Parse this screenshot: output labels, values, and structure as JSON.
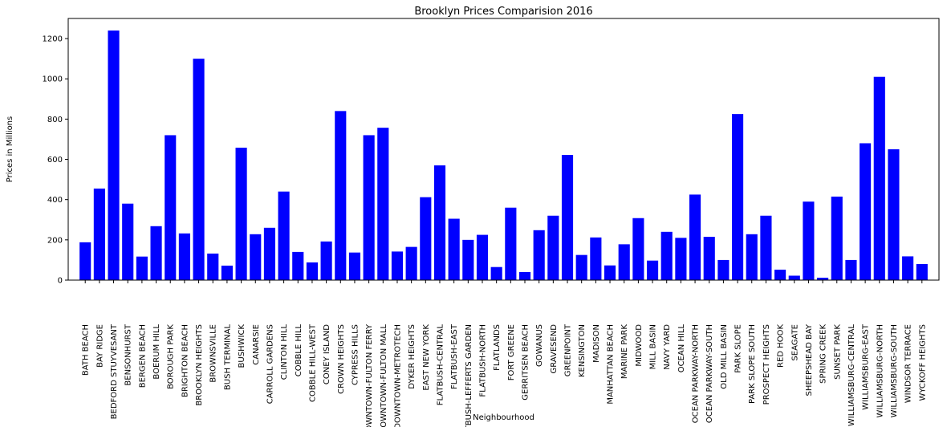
{
  "chart_data": {
    "type": "bar",
    "title": "Brooklyn Prices Comparision 2016",
    "xlabel": "Neighbourhood",
    "ylabel": "Prices in Millions",
    "ylim": [
      0,
      1300
    ],
    "yticks": [
      0,
      200,
      400,
      600,
      800,
      1000,
      1200
    ],
    "grid": false,
    "bar_color": "#0000ff",
    "categories": [
      "BATH BEACH",
      "BAY RIDGE",
      "BEDFORD STUYVESANT",
      "BENSONHURST",
      "BERGEN BEACH",
      "BOERUM HILL",
      "BOROUGH PARK",
      "BRIGHTON BEACH",
      "BROOKLYN HEIGHTS",
      "BROWNSVILLE",
      "BUSH TERMINAL",
      "BUSHWICK",
      "CANARSIE",
      "CARROLL GARDENS",
      "CLINTON HILL",
      "COBBLE HILL",
      "COBBLE HILL-WEST",
      "CONEY ISLAND",
      "CROWN HEIGHTS",
      "CYPRESS HILLS",
      "DOWNTOWN-FULTON FERRY",
      "DOWNTOWN-FULTON MALL",
      "DOWNTOWN-METROTECH",
      "DYKER HEIGHTS",
      "EAST NEW YORK",
      "FLATBUSH-CENTRAL",
      "FLATBUSH-EAST",
      "FLATBUSH-LEFFERTS GARDEN",
      "FLATBUSH-NORTH",
      "FLATLANDS",
      "FORT GREENE",
      "GERRITSEN BEACH",
      "GOWANUS",
      "GRAVESEND",
      "GREENPOINT",
      "KENSINGTON",
      "MADISON",
      "MANHATTAN BEACH",
      "MARINE PARK",
      "MIDWOOD",
      "MILL BASIN",
      "NAVY YARD",
      "OCEAN HILL",
      "OCEAN PARKWAY-NORTH",
      "OCEAN PARKWAY-SOUTH",
      "OLD MILL BASIN",
      "PARK SLOPE",
      "PARK SLOPE SOUTH",
      "PROSPECT HEIGHTS",
      "RED HOOK",
      "SEAGATE",
      "SHEEPSHEAD BAY",
      "SPRING CREEK",
      "SUNSET PARK",
      "WILLIAMSBURG-CENTRAL",
      "WILLIAMSBURG-EAST",
      "WILLIAMSBURG-NORTH",
      "WILLIAMSBURG-SOUTH",
      "WINDSOR TERRACE",
      "WYCKOFF HEIGHTS"
    ],
    "values": [
      188,
      455,
      1240,
      380,
      117,
      268,
      720,
      232,
      1100,
      132,
      72,
      658,
      228,
      260,
      440,
      140,
      88,
      192,
      840,
      137,
      720,
      757,
      142,
      165,
      412,
      570,
      305,
      200,
      225,
      65,
      360,
      40,
      248,
      320,
      622,
      125,
      212,
      73,
      178,
      308,
      97,
      240,
      210,
      425,
      215,
      100,
      825,
      228,
      320,
      52,
      22,
      390,
      12,
      415,
      100,
      680,
      1010,
      650,
      118,
      80
    ]
  }
}
